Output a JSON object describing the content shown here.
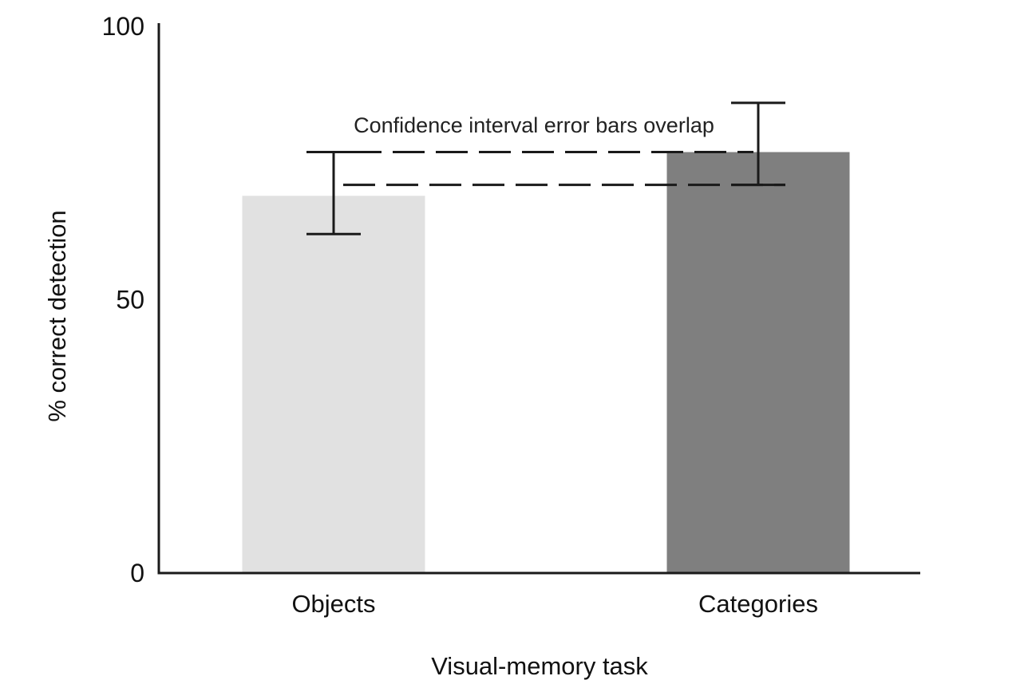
{
  "chart_data": {
    "type": "bar",
    "categories": [
      "Objects",
      "Categories"
    ],
    "values": [
      69,
      77
    ],
    "error_bars": [
      {
        "lower": 62,
        "upper": 77
      },
      {
        "lower": 71,
        "upper": 86
      }
    ],
    "xlabel": "Visual-memory task",
    "ylabel": "% correct detection",
    "ylim": [
      0,
      100
    ],
    "yticks": [
      0,
      50,
      100
    ],
    "bar_colors": [
      "#e1e1e1",
      "#7f7f7f"
    ],
    "reference_lines": [
      77,
      71
    ],
    "annotation": "Confidence interval error bars overlap",
    "grid": false,
    "legend": "none"
  }
}
